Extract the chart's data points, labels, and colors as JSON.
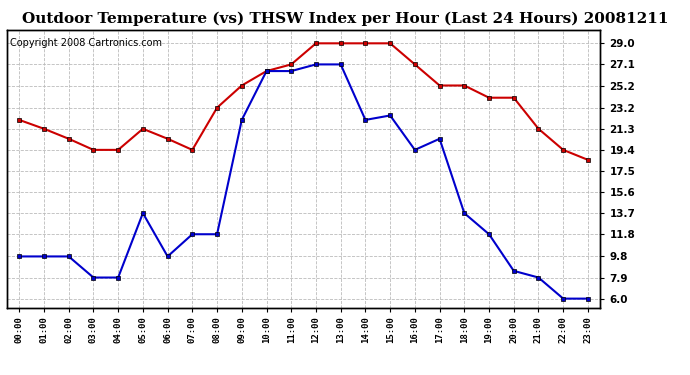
{
  "title": "Outdoor Temperature (vs) THSW Index per Hour (Last 24 Hours) 20081211",
  "copyright": "Copyright 2008 Cartronics.com",
  "hours": [
    "00:00",
    "01:00",
    "02:00",
    "03:00",
    "04:00",
    "05:00",
    "06:00",
    "07:00",
    "08:00",
    "09:00",
    "10:00",
    "11:00",
    "12:00",
    "13:00",
    "14:00",
    "15:00",
    "16:00",
    "17:00",
    "18:00",
    "19:00",
    "20:00",
    "21:00",
    "22:00",
    "23:00"
  ],
  "temp_blue": [
    9.8,
    9.8,
    9.8,
    7.9,
    7.9,
    13.7,
    9.8,
    11.8,
    11.8,
    22.1,
    26.5,
    26.5,
    27.1,
    27.1,
    22.1,
    22.5,
    19.4,
    20.4,
    13.7,
    11.8,
    8.5,
    7.9,
    6.0,
    6.0
  ],
  "thsw_red": [
    22.1,
    21.3,
    20.4,
    19.4,
    19.4,
    21.3,
    20.4,
    19.4,
    23.2,
    25.2,
    26.5,
    27.1,
    29.0,
    29.0,
    29.0,
    29.0,
    27.1,
    25.2,
    25.2,
    24.1,
    24.1,
    21.3,
    19.4,
    18.5
  ],
  "yticks": [
    6.0,
    7.9,
    9.8,
    11.8,
    13.7,
    15.6,
    17.5,
    19.4,
    21.3,
    23.2,
    25.2,
    27.1,
    29.0
  ],
  "ymin": 5.2,
  "ymax": 30.2,
  "blue_color": "#0000cc",
  "red_color": "#cc0000",
  "grid_color": "#bbbbbb",
  "bg_color": "#ffffff",
  "title_fontsize": 11,
  "copyright_fontsize": 7
}
